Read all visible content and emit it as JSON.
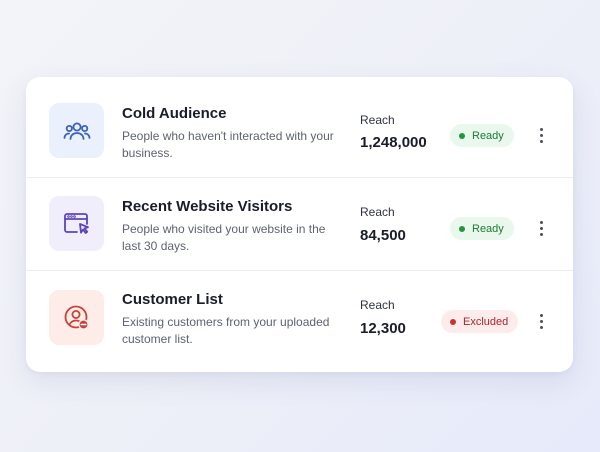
{
  "audiences": [
    {
      "name": "Cold Audience",
      "description": "People who haven't interacted with your business.",
      "reach_label": "Reach",
      "reach_value": "1,248,000",
      "status": "Ready",
      "status_type": "ready",
      "icon": "users-icon",
      "icon_bg": "#eaf0fc",
      "icon_color": "#3a63b8"
    },
    {
      "name": "Recent Website Visitors",
      "description": "People who visited your website in the last 30 days.",
      "reach_label": "Reach",
      "reach_value": "84,500",
      "status": "Ready",
      "status_type": "ready",
      "icon": "browser-cursor-icon",
      "icon_bg": "#f0eefb",
      "icon_color": "#5b45b8"
    },
    {
      "name": "Customer List",
      "description": "Existing customers from your uploaded customer list.",
      "reach_label": "Reach",
      "reach_value": "12,300",
      "status": "Excluded",
      "status_type": "excluded",
      "icon": "user-minus-icon",
      "icon_bg": "#fdece8",
      "icon_color": "#c4433a"
    }
  ]
}
